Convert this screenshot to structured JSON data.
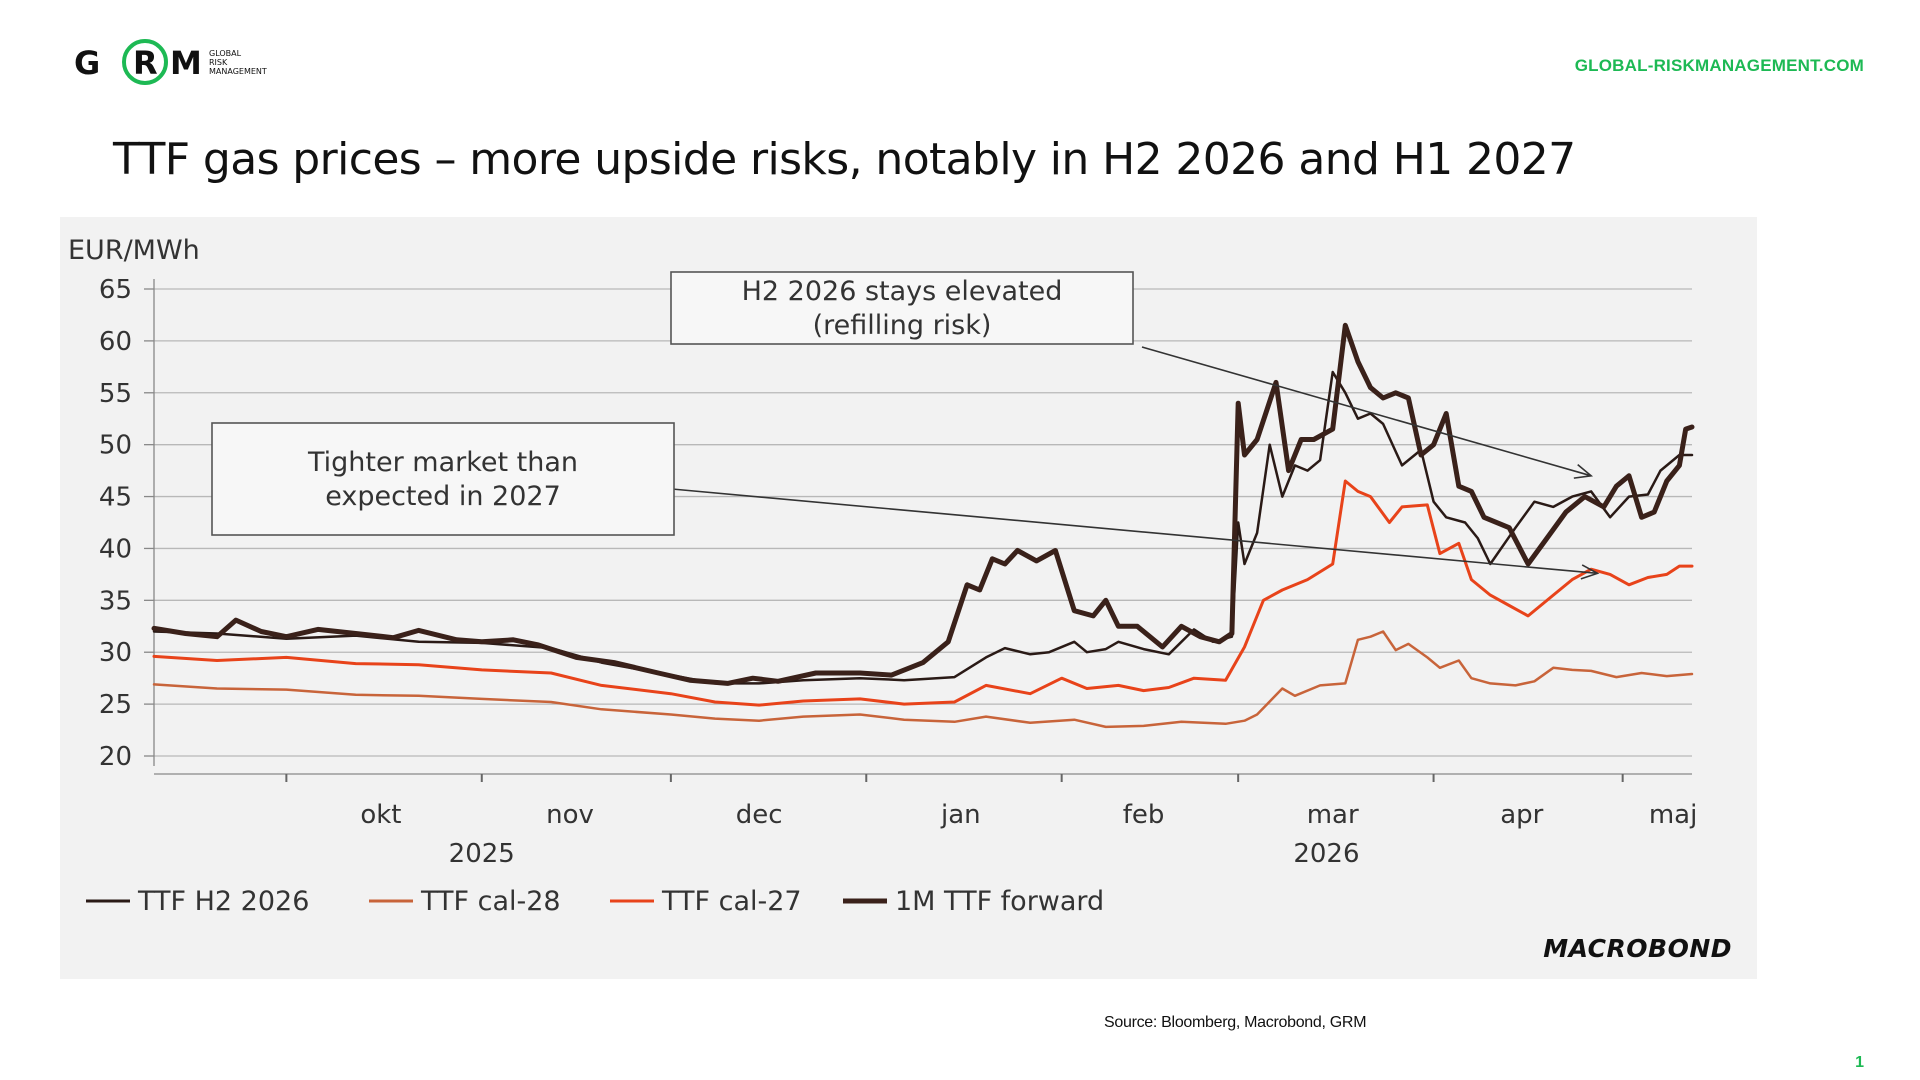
{
  "brand": {
    "logo_letters": [
      "G",
      "R",
      "M"
    ],
    "logo_tagline": [
      "GLOBAL",
      "RISK",
      "MANAGEMENT"
    ],
    "website": "GLOBAL-RISKMANAGEMENT.COM",
    "accent_color": "#1db954"
  },
  "slide": {
    "title": "TTF gas prices – more upside risks, notably in H2 2026 and H1 2027",
    "source": "Source: Bloomberg, Macrobond, GRM",
    "page_number": "1"
  },
  "chart_data": {
    "type": "line",
    "ylabel": "EUR/MWh",
    "ylim": [
      20,
      65
    ],
    "yticks": [
      65,
      60,
      55,
      50,
      45,
      40,
      35,
      30,
      25,
      20
    ],
    "x_unit": "date",
    "x_range": [
      "2025-09-10",
      "2026-05-12"
    ],
    "month_labels": [
      {
        "label": "okt",
        "date": "2025-10-16"
      },
      {
        "label": "nov",
        "date": "2025-11-15"
      },
      {
        "label": "dec",
        "date": "2025-12-15"
      },
      {
        "label": "jan",
        "date": "2026-01-16"
      },
      {
        "label": "feb",
        "date": "2026-02-14"
      },
      {
        "label": "mar",
        "date": "2026-03-16"
      },
      {
        "label": "apr",
        "date": "2026-04-15"
      },
      {
        "label": "maj",
        "date": "2026-05-09"
      }
    ],
    "year_labels": [
      {
        "label": "2025",
        "date": "2025-11-01"
      },
      {
        "label": "2026",
        "date": "2026-03-15"
      }
    ],
    "grid": true,
    "legend_position": "bottom-left",
    "series": [
      {
        "name": "TTF H2 2026",
        "color": "#2a1a16",
        "width": 2.5,
        "points": [
          [
            "2025-09-10",
            32.0
          ],
          [
            "2025-09-20",
            31.8
          ],
          [
            "2025-10-01",
            31.3
          ],
          [
            "2025-10-12",
            31.6
          ],
          [
            "2025-10-22",
            31.0
          ],
          [
            "2025-11-01",
            30.9
          ],
          [
            "2025-11-12",
            30.4
          ],
          [
            "2025-11-20",
            29.0
          ],
          [
            "2025-12-01",
            27.8
          ],
          [
            "2025-12-08",
            27.0
          ],
          [
            "2025-12-15",
            27.0
          ],
          [
            "2025-12-22",
            27.3
          ],
          [
            "2025-12-31",
            27.5
          ],
          [
            "2026-01-07",
            27.3
          ],
          [
            "2026-01-15",
            27.6
          ],
          [
            "2026-01-20",
            29.5
          ],
          [
            "2026-01-23",
            30.4
          ],
          [
            "2026-01-27",
            29.8
          ],
          [
            "2026-01-30",
            30.0
          ],
          [
            "2026-02-03",
            31.0
          ],
          [
            "2026-02-05",
            30.0
          ],
          [
            "2026-02-08",
            30.3
          ],
          [
            "2026-02-10",
            31.0
          ],
          [
            "2026-02-14",
            30.3
          ],
          [
            "2026-02-18",
            29.8
          ],
          [
            "2026-02-22",
            32.2
          ],
          [
            "2026-02-25",
            31.0
          ],
          [
            "2026-02-28",
            31.5
          ],
          [
            "2026-03-01",
            42.5
          ],
          [
            "2026-03-02",
            38.5
          ],
          [
            "2026-03-04",
            41.5
          ],
          [
            "2026-03-06",
            50.0
          ],
          [
            "2026-03-08",
            45.0
          ],
          [
            "2026-03-10",
            48.0
          ],
          [
            "2026-03-12",
            47.5
          ],
          [
            "2026-03-14",
            48.5
          ],
          [
            "2026-03-16",
            57.0
          ],
          [
            "2026-03-18",
            55.0
          ],
          [
            "2026-03-20",
            52.5
          ],
          [
            "2026-03-22",
            53.0
          ],
          [
            "2026-03-24",
            52.0
          ],
          [
            "2026-03-27",
            48.0
          ],
          [
            "2026-03-30",
            49.5
          ],
          [
            "2026-04-01",
            44.5
          ],
          [
            "2026-04-03",
            43.0
          ],
          [
            "2026-04-06",
            42.5
          ],
          [
            "2026-04-08",
            41.0
          ],
          [
            "2026-04-10",
            38.5
          ],
          [
            "2026-04-14",
            42.0
          ],
          [
            "2026-04-17",
            44.5
          ],
          [
            "2026-04-20",
            44.0
          ],
          [
            "2026-04-23",
            45.0
          ],
          [
            "2026-04-26",
            45.5
          ],
          [
            "2026-04-29",
            43.0
          ],
          [
            "2026-05-02",
            45.0
          ],
          [
            "2026-05-05",
            45.2
          ],
          [
            "2026-05-07",
            47.5
          ],
          [
            "2026-05-10",
            49.0
          ],
          [
            "2026-05-12",
            49.0
          ]
        ]
      },
      {
        "name": "TTF cal-28",
        "color": "#c8643a",
        "width": 2.5,
        "points": [
          [
            "2025-09-10",
            26.9
          ],
          [
            "2025-09-20",
            26.5
          ],
          [
            "2025-10-01",
            26.4
          ],
          [
            "2025-10-12",
            25.9
          ],
          [
            "2025-10-22",
            25.8
          ],
          [
            "2025-11-01",
            25.5
          ],
          [
            "2025-11-12",
            25.2
          ],
          [
            "2025-11-20",
            24.5
          ],
          [
            "2025-12-01",
            24.0
          ],
          [
            "2025-12-08",
            23.6
          ],
          [
            "2025-12-15",
            23.4
          ],
          [
            "2025-12-22",
            23.8
          ],
          [
            "2025-12-31",
            24.0
          ],
          [
            "2026-01-07",
            23.5
          ],
          [
            "2026-01-15",
            23.3
          ],
          [
            "2026-01-20",
            23.8
          ],
          [
            "2026-01-27",
            23.2
          ],
          [
            "2026-02-03",
            23.5
          ],
          [
            "2026-02-08",
            22.8
          ],
          [
            "2026-02-14",
            22.9
          ],
          [
            "2026-02-20",
            23.3
          ],
          [
            "2026-02-27",
            23.1
          ],
          [
            "2026-03-02",
            23.4
          ],
          [
            "2026-03-04",
            24.0
          ],
          [
            "2026-03-08",
            26.5
          ],
          [
            "2026-03-10",
            25.8
          ],
          [
            "2026-03-14",
            26.8
          ],
          [
            "2026-03-18",
            27.0
          ],
          [
            "2026-03-20",
            31.2
          ],
          [
            "2026-03-22",
            31.5
          ],
          [
            "2026-03-24",
            32.0
          ],
          [
            "2026-03-26",
            30.2
          ],
          [
            "2026-03-28",
            30.8
          ],
          [
            "2026-03-31",
            29.5
          ],
          [
            "2026-04-02",
            28.5
          ],
          [
            "2026-04-05",
            29.2
          ],
          [
            "2026-04-07",
            27.5
          ],
          [
            "2026-04-10",
            27.0
          ],
          [
            "2026-04-14",
            26.8
          ],
          [
            "2026-04-17",
            27.2
          ],
          [
            "2026-04-20",
            28.5
          ],
          [
            "2026-04-23",
            28.3
          ],
          [
            "2026-04-26",
            28.2
          ],
          [
            "2026-04-30",
            27.6
          ],
          [
            "2026-05-04",
            28.0
          ],
          [
            "2026-05-08",
            27.7
          ],
          [
            "2026-05-12",
            27.9
          ]
        ]
      },
      {
        "name": "TTF cal-27",
        "color": "#e8431a",
        "width": 3,
        "points": [
          [
            "2025-09-10",
            29.6
          ],
          [
            "2025-09-20",
            29.2
          ],
          [
            "2025-10-01",
            29.5
          ],
          [
            "2025-10-12",
            28.9
          ],
          [
            "2025-10-22",
            28.8
          ],
          [
            "2025-11-01",
            28.3
          ],
          [
            "2025-11-12",
            28.0
          ],
          [
            "2025-11-20",
            26.8
          ],
          [
            "2025-12-01",
            26.0
          ],
          [
            "2025-12-08",
            25.2
          ],
          [
            "2025-12-15",
            24.9
          ],
          [
            "2025-12-22",
            25.3
          ],
          [
            "2025-12-31",
            25.5
          ],
          [
            "2026-01-07",
            25.0
          ],
          [
            "2026-01-15",
            25.2
          ],
          [
            "2026-01-20",
            26.8
          ],
          [
            "2026-01-27",
            26.0
          ],
          [
            "2026-02-01",
            27.5
          ],
          [
            "2026-02-05",
            26.5
          ],
          [
            "2026-02-10",
            26.8
          ],
          [
            "2026-02-14",
            26.3
          ],
          [
            "2026-02-18",
            26.6
          ],
          [
            "2026-02-22",
            27.5
          ],
          [
            "2026-02-27",
            27.3
          ],
          [
            "2026-03-02",
            30.5
          ],
          [
            "2026-03-05",
            35.0
          ],
          [
            "2026-03-08",
            36.0
          ],
          [
            "2026-03-12",
            37.0
          ],
          [
            "2026-03-16",
            38.5
          ],
          [
            "2026-03-18",
            46.5
          ],
          [
            "2026-03-20",
            45.5
          ],
          [
            "2026-03-22",
            45.0
          ],
          [
            "2026-03-25",
            42.5
          ],
          [
            "2026-03-27",
            44.0
          ],
          [
            "2026-03-31",
            44.2
          ],
          [
            "2026-04-02",
            39.5
          ],
          [
            "2026-04-05",
            40.5
          ],
          [
            "2026-04-07",
            37.0
          ],
          [
            "2026-04-10",
            35.5
          ],
          [
            "2026-04-13",
            34.5
          ],
          [
            "2026-04-16",
            33.5
          ],
          [
            "2026-04-20",
            35.5
          ],
          [
            "2026-04-23",
            37.0
          ],
          [
            "2026-04-26",
            38.0
          ],
          [
            "2026-04-29",
            37.5
          ],
          [
            "2026-05-02",
            36.5
          ],
          [
            "2026-05-05",
            37.2
          ],
          [
            "2026-05-08",
            37.5
          ],
          [
            "2026-05-10",
            38.3
          ],
          [
            "2026-05-12",
            38.3
          ]
        ]
      },
      {
        "name": "1M TTF forward",
        "color": "#3a211a",
        "width": 5,
        "points": [
          [
            "2025-09-10",
            32.3
          ],
          [
            "2025-09-15",
            31.8
          ],
          [
            "2025-09-20",
            31.5
          ],
          [
            "2025-09-23",
            33.1
          ],
          [
            "2025-09-27",
            32.0
          ],
          [
            "2025-10-01",
            31.5
          ],
          [
            "2025-10-06",
            32.2
          ],
          [
            "2025-10-12",
            31.8
          ],
          [
            "2025-10-18",
            31.4
          ],
          [
            "2025-10-22",
            32.1
          ],
          [
            "2025-10-28",
            31.2
          ],
          [
            "2025-11-01",
            31.0
          ],
          [
            "2025-11-06",
            31.2
          ],
          [
            "2025-11-10",
            30.7
          ],
          [
            "2025-11-16",
            29.5
          ],
          [
            "2025-11-22",
            29.0
          ],
          [
            "2025-11-29",
            28.0
          ],
          [
            "2025-12-04",
            27.3
          ],
          [
            "2025-12-10",
            27.0
          ],
          [
            "2025-12-14",
            27.5
          ],
          [
            "2025-12-18",
            27.2
          ],
          [
            "2025-12-24",
            28.0
          ],
          [
            "2025-12-31",
            28.0
          ],
          [
            "2026-01-05",
            27.8
          ],
          [
            "2026-01-10",
            29.0
          ],
          [
            "2026-01-14",
            31.0
          ],
          [
            "2026-01-17",
            36.5
          ],
          [
            "2026-01-19",
            36.0
          ],
          [
            "2026-01-21",
            39.0
          ],
          [
            "2026-01-23",
            38.5
          ],
          [
            "2026-01-25",
            39.8
          ],
          [
            "2026-01-28",
            38.8
          ],
          [
            "2026-01-31",
            39.8
          ],
          [
            "2026-02-03",
            34.0
          ],
          [
            "2026-02-06",
            33.5
          ],
          [
            "2026-02-08",
            35.0
          ],
          [
            "2026-02-10",
            32.5
          ],
          [
            "2026-02-13",
            32.5
          ],
          [
            "2026-02-17",
            30.5
          ],
          [
            "2026-02-20",
            32.5
          ],
          [
            "2026-02-23",
            31.5
          ],
          [
            "2026-02-26",
            31.0
          ],
          [
            "2026-02-28",
            31.8
          ],
          [
            "2026-03-01",
            54.0
          ],
          [
            "2026-03-02",
            49.0
          ],
          [
            "2026-03-04",
            50.5
          ],
          [
            "2026-03-07",
            56.0
          ],
          [
            "2026-03-09",
            47.5
          ],
          [
            "2026-03-11",
            50.5
          ],
          [
            "2026-03-13",
            50.5
          ],
          [
            "2026-03-16",
            51.5
          ],
          [
            "2026-03-18",
            61.5
          ],
          [
            "2026-03-20",
            58.0
          ],
          [
            "2026-03-22",
            55.5
          ],
          [
            "2026-03-24",
            54.5
          ],
          [
            "2026-03-26",
            55.0
          ],
          [
            "2026-03-28",
            54.5
          ],
          [
            "2026-03-30",
            49.0
          ],
          [
            "2026-04-01",
            50.0
          ],
          [
            "2026-04-03",
            53.0
          ],
          [
            "2026-04-05",
            46.0
          ],
          [
            "2026-04-07",
            45.5
          ],
          [
            "2026-04-09",
            43.0
          ],
          [
            "2026-04-13",
            42.0
          ],
          [
            "2026-04-16",
            38.5
          ],
          [
            "2026-04-19",
            41.0
          ],
          [
            "2026-04-22",
            43.5
          ],
          [
            "2026-04-25",
            45.0
          ],
          [
            "2026-04-28",
            44.0
          ],
          [
            "2026-04-30",
            46.0
          ],
          [
            "2026-05-02",
            47.0
          ],
          [
            "2026-05-04",
            43.0
          ],
          [
            "2026-05-06",
            43.5
          ],
          [
            "2026-05-08",
            46.5
          ],
          [
            "2026-05-10",
            48.0
          ],
          [
            "2026-05-11",
            51.5
          ],
          [
            "2026-05-12",
            51.7
          ]
        ]
      }
    ],
    "annotations": [
      {
        "lines": [
          "H2 2026 stays elevated",
          "(refilling risk)"
        ],
        "arrow_to": [
          "2026-04-26",
          47.0
        ]
      },
      {
        "lines": [
          "Tighter market than",
          "expected in 2027"
        ],
        "arrow_to": [
          "2026-04-27",
          37.6
        ]
      }
    ],
    "source_logo": "MACROBOND"
  }
}
